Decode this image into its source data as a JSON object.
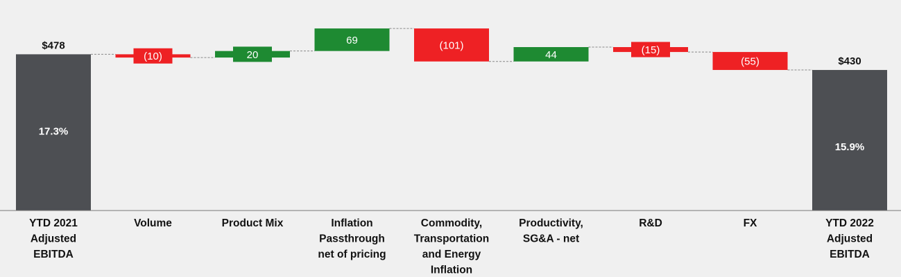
{
  "chart_data": {
    "type": "waterfall",
    "colors": {
      "total": "#4d4f53",
      "increase": "#1e8a32",
      "decrease": "#ee2124",
      "axis": "#777777",
      "connector": "#888888"
    },
    "categories": [
      [
        "YTD 2021",
        "Adjusted",
        "EBITDA"
      ],
      [
        "Volume"
      ],
      [
        "Product Mix"
      ],
      [
        "Inflation",
        "Passthrough",
        "net of pricing"
      ],
      [
        "Commodity,",
        "Transportation",
        "and Energy",
        "Inflation"
      ],
      [
        "Productivity,",
        "SG&A - net"
      ],
      [
        "R&D"
      ],
      [
        "FX"
      ],
      [
        "YTD 2022",
        "Adjusted",
        "EBITDA"
      ]
    ],
    "steps": [
      {
        "kind": "total",
        "value": 478,
        "label": "$478",
        "inner_label": "17.3%"
      },
      {
        "kind": "delta",
        "value": -10,
        "label": "(10)"
      },
      {
        "kind": "delta",
        "value": 20,
        "label": "20"
      },
      {
        "kind": "delta",
        "value": 69,
        "label": "69"
      },
      {
        "kind": "delta",
        "value": -101,
        "label": "(101)"
      },
      {
        "kind": "delta",
        "value": 44,
        "label": "44"
      },
      {
        "kind": "delta",
        "value": -15,
        "label": "(15)"
      },
      {
        "kind": "delta",
        "value": -55,
        "label": "(55)"
      },
      {
        "kind": "total",
        "value": 430,
        "label": "$430",
        "inner_label": "15.9%"
      }
    ]
  }
}
